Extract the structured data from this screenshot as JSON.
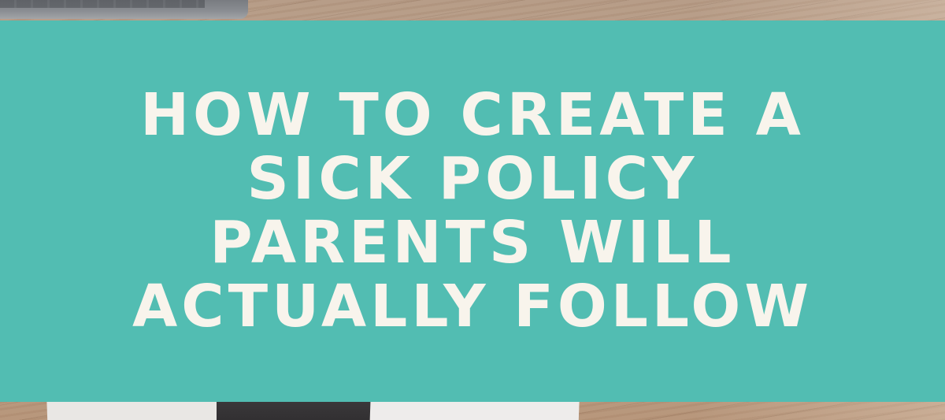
{
  "banner": {
    "background_color": "#52bdb2",
    "text_color": "#f8f4ec",
    "title_lines": [
      "HOW TO CREATE A",
      "SICK POLICY",
      "PARENTS WILL",
      "ACTUALLY FOLLOW"
    ]
  }
}
